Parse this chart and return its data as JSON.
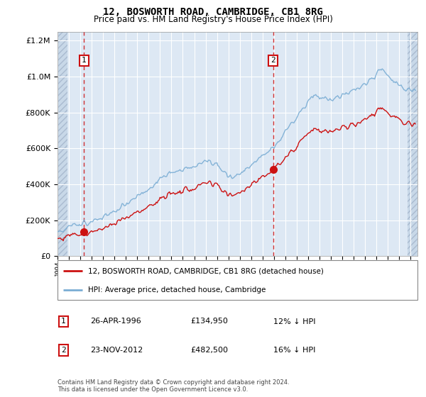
{
  "title": "12, BOSWORTH ROAD, CAMBRIDGE, CB1 8RG",
  "subtitle": "Price paid vs. HM Land Registry's House Price Index (HPI)",
  "hpi_label": "HPI: Average price, detached house, Cambridge",
  "price_label": "12, BOSWORTH ROAD, CAMBRIDGE, CB1 8RG (detached house)",
  "sale1_date": "26-APR-1996",
  "sale1_price": 134950,
  "sale1_note": "12% ↓ HPI",
  "sale2_date": "23-NOV-2012",
  "sale2_price": 482500,
  "sale2_note": "16% ↓ HPI",
  "footer": "Contains HM Land Registry data © Crown copyright and database right 2024.\nThis data is licensed under the Open Government Licence v3.0.",
  "ylim": [
    0,
    1250000
  ],
  "yticks": [
    0,
    200000,
    400000,
    600000,
    800000,
    1000000,
    1200000
  ],
  "hpi_color": "#7aadd4",
  "price_color": "#cc1111",
  "dashed_color": "#cc1111",
  "plot_bg": "#dde8f4",
  "hatch_bg": "#c8d8e8"
}
